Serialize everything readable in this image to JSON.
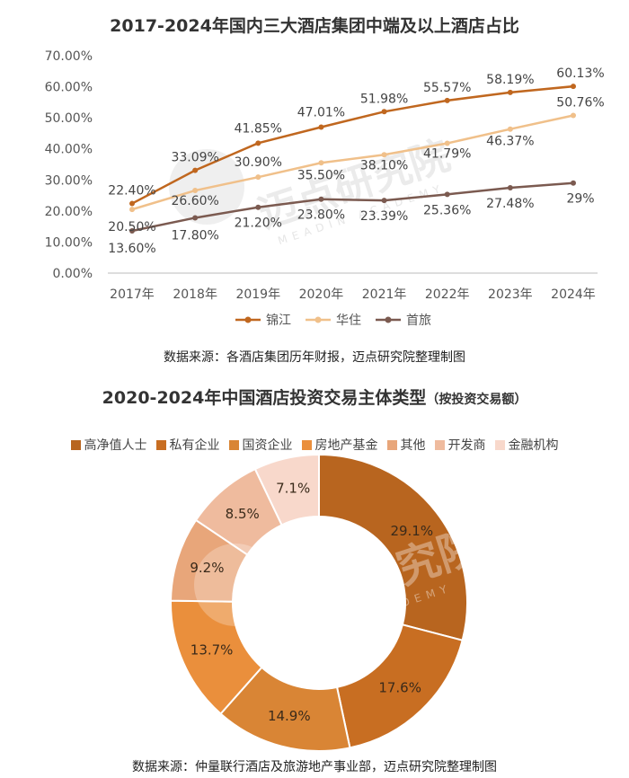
{
  "titles": {
    "chart1": "2017-2024年国内三大酒店集团中端及以上酒店占比",
    "chart2_main": "2020-2024年中国酒店投资交易主体类型",
    "chart2_sub": "（按投资交易额）"
  },
  "sources": {
    "chart1": "数据来源：各酒店集团历年财报，迈点研究院整理制图",
    "chart2": "数据来源：仲量联行酒店及旅游地产事业部，迈点研究院整理制图"
  },
  "watermark": {
    "text": "迈点研究院",
    "en": "MEADIN ACADEMY"
  },
  "chart_data": [
    {
      "type": "line",
      "title": "2017-2024年国内三大酒店集团中端及以上酒店占比",
      "categories": [
        "2017年",
        "2018年",
        "2019年",
        "2020年",
        "2021年",
        "2022年",
        "2023年",
        "2024年"
      ],
      "y_ticks": [
        "0.00%",
        "10.00%",
        "20.00%",
        "30.00%",
        "40.00%",
        "50.00%",
        "60.00%",
        "70.00%"
      ],
      "ylim": [
        0,
        70
      ],
      "legend_position": "bottom",
      "series": [
        {
          "name": "锦江",
          "color": "#c0671f",
          "values": [
            22.4,
            33.09,
            41.85,
            47.01,
            51.98,
            55.57,
            58.19,
            60.13
          ],
          "labels": [
            "22.40%",
            "33.09%",
            "41.85%",
            "47.01%",
            "51.98%",
            "55.57%",
            "58.19%",
            "60.13%"
          ]
        },
        {
          "name": "华住",
          "color": "#f0c08a",
          "values": [
            20.5,
            26.6,
            30.9,
            35.5,
            38.1,
            41.79,
            46.37,
            50.76
          ],
          "labels": [
            "20.50%",
            "26.60%",
            "30.90%",
            "35.50%",
            "38.10%",
            "41.79%",
            "46.37%",
            "50.76%"
          ]
        },
        {
          "name": "首旅",
          "color": "#7b5a50",
          "values": [
            13.6,
            17.8,
            21.2,
            23.8,
            23.39,
            25.36,
            27.48,
            29
          ],
          "labels": [
            "13.60%",
            "17.80%",
            "21.20%",
            "23.80%",
            "23.39%",
            "25.36%",
            "27.48%",
            "29%"
          ]
        }
      ]
    },
    {
      "type": "pie",
      "donut": true,
      "title": "2020-2024年中国酒店投资交易主体类型（按投资交易额）",
      "legend_position": "top",
      "slices": [
        {
          "name": "高净值人士",
          "value": 29.1,
          "label": "29.1%",
          "color": "#b8651f"
        },
        {
          "name": "私有企业",
          "value": 17.6,
          "label": "17.6%",
          "color": "#c86e22"
        },
        {
          "name": "国资企业",
          "value": 14.9,
          "label": "14.9%",
          "color": "#d98535"
        },
        {
          "name": "房地产基金",
          "value": 13.7,
          "label": "13.7%",
          "color": "#ea8f3c"
        },
        {
          "name": "其他",
          "value": 9.2,
          "label": "9.2%",
          "color": "#e8a67a"
        },
        {
          "name": "开发商",
          "value": 8.5,
          "label": "8.5%",
          "color": "#efbb9e"
        },
        {
          "name": "金融机构",
          "value": 7.1,
          "label": "7.1%",
          "color": "#f8d8cb"
        }
      ]
    }
  ]
}
